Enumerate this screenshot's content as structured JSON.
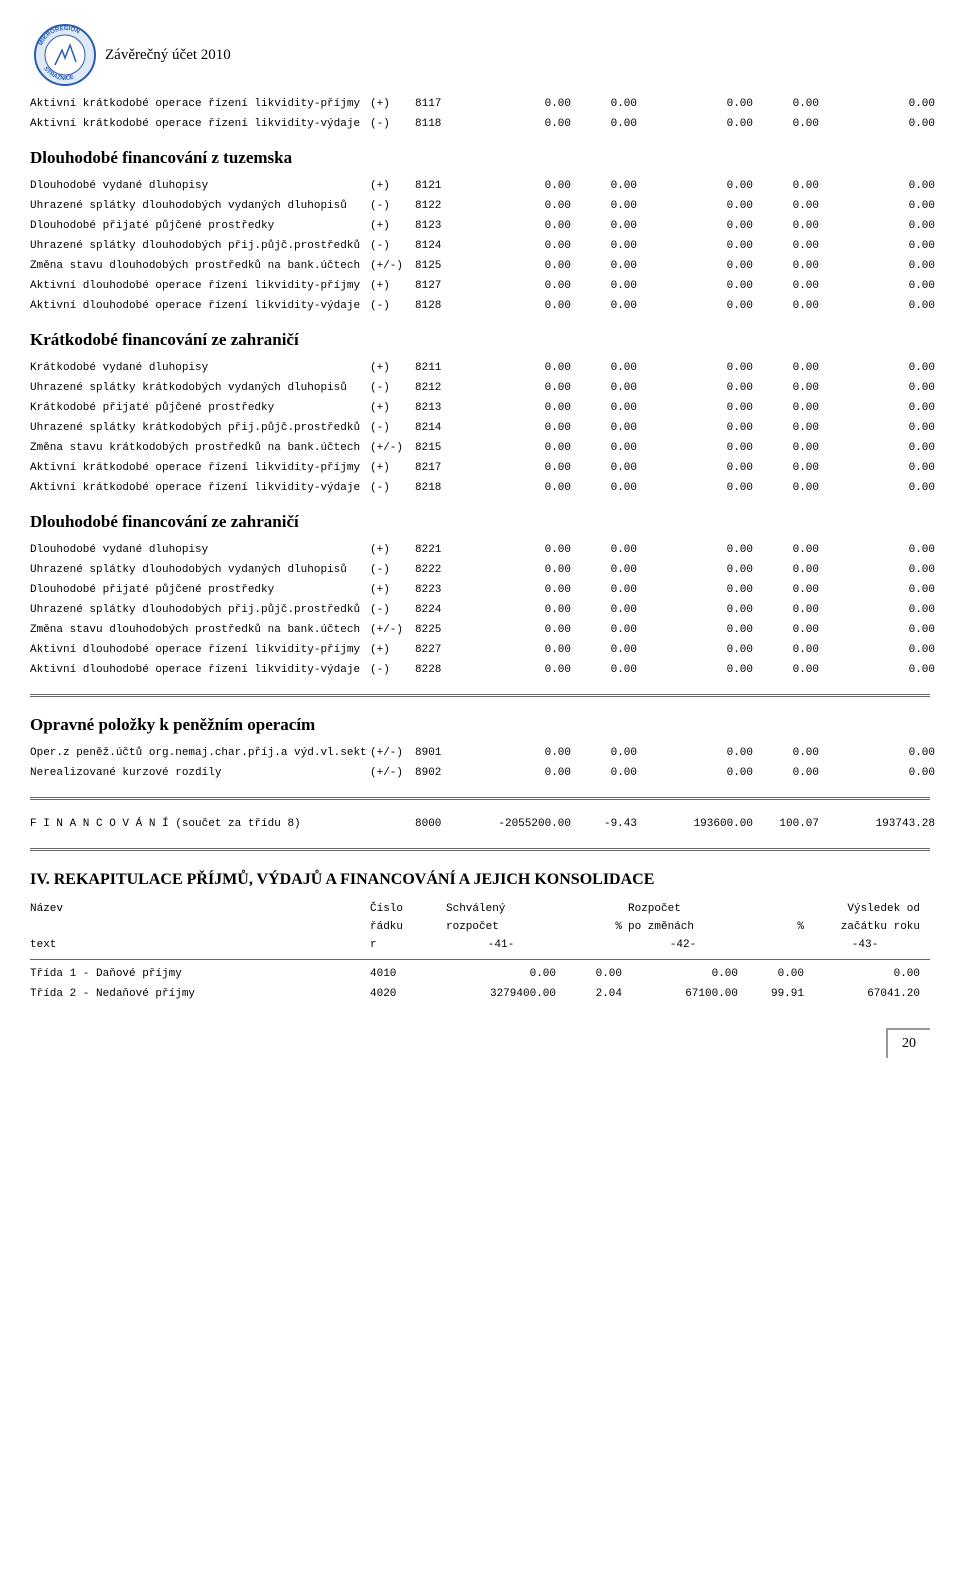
{
  "doc_title": "Závěrečný účet 2010",
  "logo": {
    "top_text": "MIKROREGION",
    "bottom_text": "STRÁŽNICE",
    "ring_color": "#2a5db0",
    "inner_fill": "#dfeaf6"
  },
  "rows": [
    {
      "label": "Aktivní krátkodobé operace řízení likvidity-příjmy",
      "sign": "(+)",
      "code": "8117",
      "c1": "0.00",
      "c2": "0.00",
      "c3": "0.00",
      "c4": "0.00",
      "c5": "0.00"
    },
    {
      "label": "Aktivní krátkodobé operace řízení likvidity-výdaje",
      "sign": "(-)",
      "code": "8118",
      "c1": "0.00",
      "c2": "0.00",
      "c3": "0.00",
      "c4": "0.00",
      "c5": "0.00"
    }
  ],
  "section_dlouho_tuz": "Dlouhodobé financování z tuzemska",
  "rows_dlouho_tuz": [
    {
      "label": "Dlouhodobé vydané dluhopisy",
      "sign": "(+)",
      "code": "8121",
      "c1": "0.00",
      "c2": "0.00",
      "c3": "0.00",
      "c4": "0.00",
      "c5": "0.00"
    },
    {
      "label": "Uhrazené splátky dlouhodobých vydaných dluhopisů",
      "sign": "(-)",
      "code": "8122",
      "c1": "0.00",
      "c2": "0.00",
      "c3": "0.00",
      "c4": "0.00",
      "c5": "0.00"
    },
    {
      "label": "Dlouhodobé přijaté půjčené prostředky",
      "sign": "(+)",
      "code": "8123",
      "c1": "0.00",
      "c2": "0.00",
      "c3": "0.00",
      "c4": "0.00",
      "c5": "0.00"
    },
    {
      "label": "Uhrazené splátky dlouhodobých přij.půjč.prostředků",
      "sign": "(-)",
      "code": "8124",
      "c1": "0.00",
      "c2": "0.00",
      "c3": "0.00",
      "c4": "0.00",
      "c5": "0.00"
    },
    {
      "label": "Změna stavu dlouhodobých prostředků na bank.účtech",
      "sign": "(+/-)",
      "code": "8125",
      "c1": "0.00",
      "c2": "0.00",
      "c3": "0.00",
      "c4": "0.00",
      "c5": "0.00"
    },
    {
      "label": "Aktivní dlouhodobé operace řízení likvidity-příjmy",
      "sign": "(+)",
      "code": "8127",
      "c1": "0.00",
      "c2": "0.00",
      "c3": "0.00",
      "c4": "0.00",
      "c5": "0.00"
    },
    {
      "label": "Aktivní dlouhodobé operace řízení likvidity-výdaje",
      "sign": "(-)",
      "code": "8128",
      "c1": "0.00",
      "c2": "0.00",
      "c3": "0.00",
      "c4": "0.00",
      "c5": "0.00"
    }
  ],
  "section_kratko_zahr": "Krátkodobé financování ze zahraničí",
  "rows_kratko_zahr": [
    {
      "label": "Krátkodobé vydané dluhopisy",
      "sign": "(+)",
      "code": "8211",
      "c1": "0.00",
      "c2": "0.00",
      "c3": "0.00",
      "c4": "0.00",
      "c5": "0.00"
    },
    {
      "label": "Uhrazené splátky krátkodobých vydaných dluhopisů",
      "sign": "(-)",
      "code": "8212",
      "c1": "0.00",
      "c2": "0.00",
      "c3": "0.00",
      "c4": "0.00",
      "c5": "0.00"
    },
    {
      "label": "Krátkodobé přijaté půjčené prostředky",
      "sign": "(+)",
      "code": "8213",
      "c1": "0.00",
      "c2": "0.00",
      "c3": "0.00",
      "c4": "0.00",
      "c5": "0.00"
    },
    {
      "label": "Uhrazené splátky krátkodobých přij.půjč.prostředků",
      "sign": "(-)",
      "code": "8214",
      "c1": "0.00",
      "c2": "0.00",
      "c3": "0.00",
      "c4": "0.00",
      "c5": "0.00"
    },
    {
      "label": "Změna stavu krátkodobých prostředků na bank.účtech",
      "sign": "(+/-)",
      "code": "8215",
      "c1": "0.00",
      "c2": "0.00",
      "c3": "0.00",
      "c4": "0.00",
      "c5": "0.00"
    },
    {
      "label": "Aktivní krátkodobé operace řízení likvidity-příjmy",
      "sign": "(+)",
      "code": "8217",
      "c1": "0.00",
      "c2": "0.00",
      "c3": "0.00",
      "c4": "0.00",
      "c5": "0.00"
    },
    {
      "label": "Aktivní krátkodobé operace řízení likvidity-výdaje",
      "sign": "(-)",
      "code": "8218",
      "c1": "0.00",
      "c2": "0.00",
      "c3": "0.00",
      "c4": "0.00",
      "c5": "0.00"
    }
  ],
  "section_dlouho_zahr": "Dlouhodobé financování ze zahraničí",
  "rows_dlouho_zahr": [
    {
      "label": "Dlouhodobé vydané dluhopisy",
      "sign": "(+)",
      "code": "8221",
      "c1": "0.00",
      "c2": "0.00",
      "c3": "0.00",
      "c4": "0.00",
      "c5": "0.00"
    },
    {
      "label": "Uhrazené splátky dlouhodobých vydaných dluhopisů",
      "sign": "(-)",
      "code": "8222",
      "c1": "0.00",
      "c2": "0.00",
      "c3": "0.00",
      "c4": "0.00",
      "c5": "0.00"
    },
    {
      "label": "Dlouhodobé přijaté půjčené prostředky",
      "sign": "(+)",
      "code": "8223",
      "c1": "0.00",
      "c2": "0.00",
      "c3": "0.00",
      "c4": "0.00",
      "c5": "0.00"
    },
    {
      "label": "Uhrazené splátky dlouhodobých přij.půjč.prostředků",
      "sign": "(-)",
      "code": "8224",
      "c1": "0.00",
      "c2": "0.00",
      "c3": "0.00",
      "c4": "0.00",
      "c5": "0.00"
    },
    {
      "label": "Změna stavu dlouhodobých prostředků na bank.účtech",
      "sign": "(+/-)",
      "code": "8225",
      "c1": "0.00",
      "c2": "0.00",
      "c3": "0.00",
      "c4": "0.00",
      "c5": "0.00"
    },
    {
      "label": "Aktivní dlouhodobé operace řízení likvidity-příjmy",
      "sign": "(+)",
      "code": "8227",
      "c1": "0.00",
      "c2": "0.00",
      "c3": "0.00",
      "c4": "0.00",
      "c5": "0.00"
    },
    {
      "label": "Aktivní dlouhodobé operace řízení likvidity-výdaje",
      "sign": "(-)",
      "code": "8228",
      "c1": "0.00",
      "c2": "0.00",
      "c3": "0.00",
      "c4": "0.00",
      "c5": "0.00"
    }
  ],
  "section_opravne": "Opravné položky k peněžním operacím",
  "rows_opravne": [
    {
      "label": "Oper.z peněž.účtů org.nemaj.char.příj.a výd.vl.sekt",
      "sign": "(+/-)",
      "code": "8901",
      "c1": "0.00",
      "c2": "0.00",
      "c3": "0.00",
      "c4": "0.00",
      "c5": "0.00"
    },
    {
      "label": "Nerealizované kurzové rozdíly",
      "sign": "(+/-)",
      "code": "8902",
      "c1": "0.00",
      "c2": "0.00",
      "c3": "0.00",
      "c4": "0.00",
      "c5": "0.00"
    }
  ],
  "total_row": {
    "label": "F I N A N C O V Á N Í  (součet za třídu 8)",
    "sign": "",
    "code": "8000",
    "c1": "-2055200.00",
    "c2": "-9.43",
    "c3": "193600.00",
    "c4": "100.07",
    "c5": "193743.28"
  },
  "iv_title": "IV. REKAPITULACE PŘÍJMŮ, VÝDAJŮ A FINANCOVÁNÍ A JEJICH KONSOLIDACE",
  "recap_head1": {
    "nazev": "Název",
    "cislo": "Číslo",
    "schvaleny": "Schválený",
    "rozpocet": "Rozpočet",
    "vysledek": "Výsledek od"
  },
  "recap_head2": {
    "radku": "řádku",
    "rozpocet": "rozpočet",
    "pct1": "%",
    "pozmenach": "po změnách",
    "pct2": "%",
    "zacatku": "začátku roku"
  },
  "recap_head3": {
    "text": "text",
    "r": "r",
    "c41": "-41-",
    "c42": "-42-",
    "c43": "-43-"
  },
  "recap_rows": [
    {
      "label": "Třída 1 - Daňové příjmy",
      "code": "4010",
      "c1": "0.00",
      "c2": "0.00",
      "c3": "0.00",
      "c4": "0.00",
      "c5": "0.00"
    },
    {
      "label": "Třída 2 - Nedaňové příjmy",
      "code": "4020",
      "c1": "3279400.00",
      "c2": "2.04",
      "c3": "67100.00",
      "c4": "99.91",
      "c5": "67041.20"
    }
  ],
  "page_number": "20"
}
